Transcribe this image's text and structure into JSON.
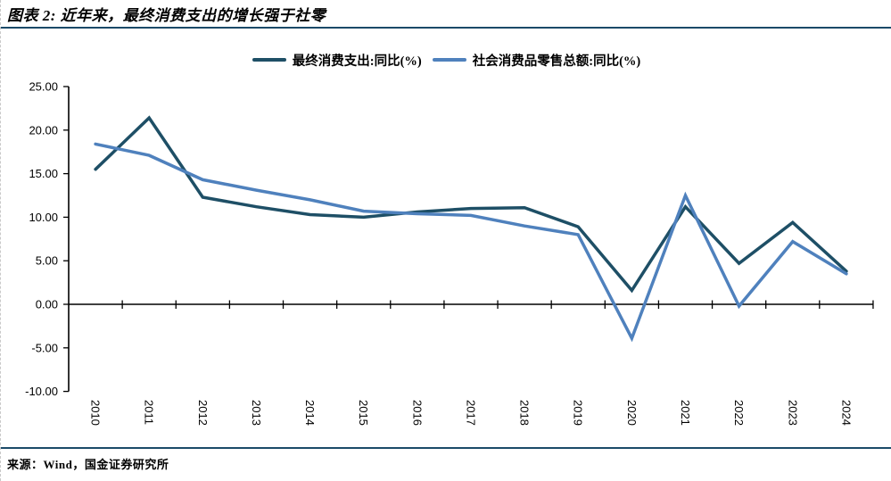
{
  "figure": {
    "title": "图表 2: 近年来，最终消费支出的增长强于社零",
    "source": "来源：Wind，国金证券研究所"
  },
  "colors": {
    "rule": "#1B4A68",
    "axis": "#000000",
    "series_dark": "#1E4F66",
    "series_light": "#4F81BD"
  },
  "chart_data": {
    "type": "line",
    "title": "图表 2: 近年来，最终消费支出的增长强于社零",
    "categories": [
      "2010",
      "2011",
      "2012",
      "2013",
      "2014",
      "2015",
      "2016",
      "2017",
      "2018",
      "2019",
      "2020",
      "2021",
      "2022",
      "2023",
      "2024"
    ],
    "series": [
      {
        "name": "最终消费支出:同比(%)",
        "color": "#1E4F66",
        "values": [
          15.5,
          21.4,
          12.3,
          11.2,
          10.3,
          10.0,
          10.6,
          11.0,
          11.1,
          8.9,
          1.6,
          11.2,
          4.7,
          9.4,
          3.8
        ]
      },
      {
        "name": "社会消费品零售总额:同比(%)",
        "color": "#4F81BD",
        "values": [
          18.4,
          17.1,
          14.3,
          13.1,
          12.0,
          10.7,
          10.4,
          10.2,
          9.0,
          8.0,
          -3.9,
          12.5,
          -0.2,
          7.2,
          3.5
        ]
      }
    ],
    "xlabel": "",
    "ylabel": "",
    "ylim": [
      -10,
      25
    ],
    "ytick_step": 5,
    "ytick_labels": [
      "25.00",
      "20.00",
      "15.00",
      "10.00",
      "5.00",
      "0.00",
      "-5.00",
      "-10.00"
    ],
    "grid": false,
    "legend_position": "top"
  }
}
